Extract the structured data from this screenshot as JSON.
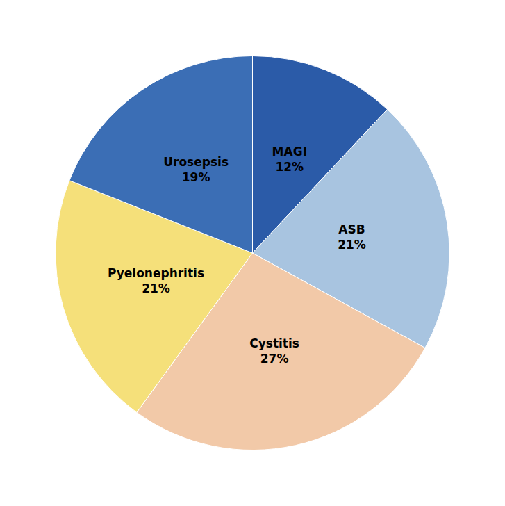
{
  "chart_data": {
    "type": "pie",
    "categories": [
      "MAGI",
      "ASB",
      "Cystitis",
      "Pyelonephritis",
      "Urosepsis"
    ],
    "values": [
      12,
      21,
      27,
      21,
      19
    ],
    "value_labels": [
      "12%",
      "21%",
      "27%",
      "21%",
      "19%"
    ],
    "colors": [
      "#2B5BA8",
      "#A8C4E0",
      "#F2C9A8",
      "#F5E07A",
      "#3B6EB5"
    ],
    "data_labels": true
  }
}
